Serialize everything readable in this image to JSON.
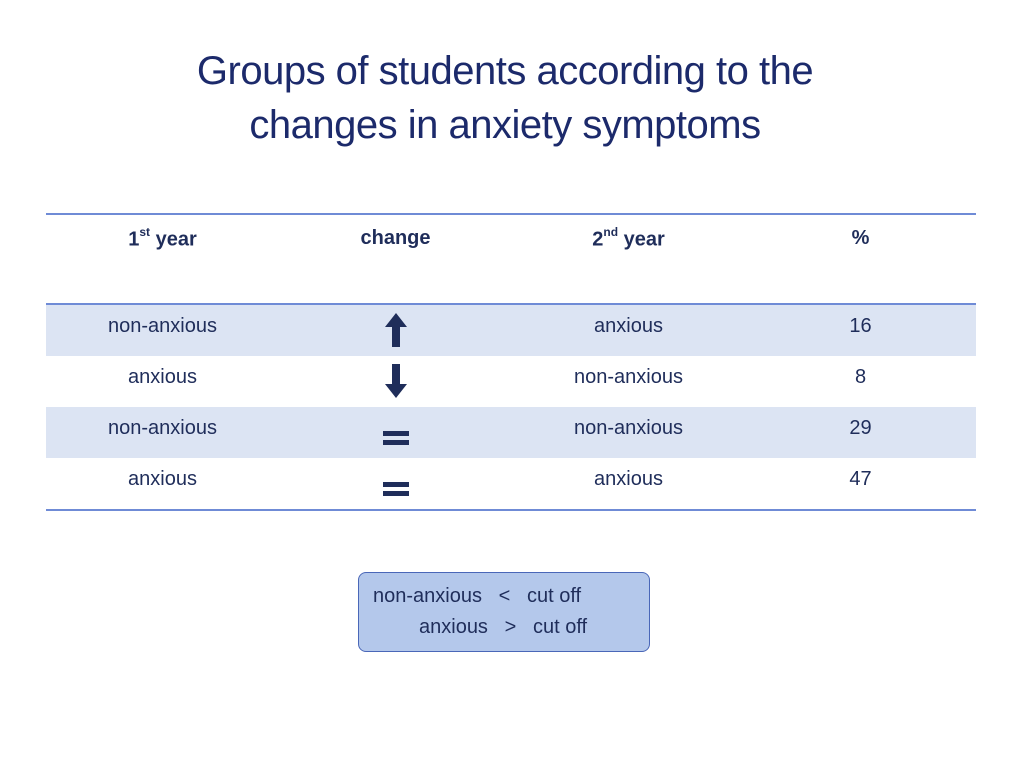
{
  "title": {
    "line1": "Groups of students according to the",
    "line2": "changes in anxiety symptoms"
  },
  "table": {
    "headers": {
      "year1_num": "1",
      "year1_sup": "st",
      "year1_word": " year",
      "change": "change",
      "year2_num": "2",
      "year2_sup": "nd",
      "year2_word": " year",
      "percent": "%"
    },
    "rows": [
      {
        "first": "non-anxious",
        "change": "up-arrow-icon",
        "second": "anxious",
        "pct": "16"
      },
      {
        "first": "anxious",
        "change": "down-arrow-icon",
        "second": "non-anxious",
        "pct": "8"
      },
      {
        "first": "non-anxious",
        "change": "equals-icon",
        "second": "non-anxious",
        "pct": "29"
      },
      {
        "first": "anxious",
        "change": "equals-icon",
        "second": "anxious",
        "pct": "47"
      }
    ]
  },
  "legend": {
    "line1": "non-anxious   <   cut off",
    "line2": "anxious   >   cut off"
  },
  "colors": {
    "title": "#1c2a6b",
    "text": "#1f2d5a",
    "rule": "#6f8bd6",
    "row_shade": "#dce4f3",
    "legend_fill": "#b4c8eb",
    "legend_border": "#4a67b8",
    "icon": "#1f2d5a"
  }
}
